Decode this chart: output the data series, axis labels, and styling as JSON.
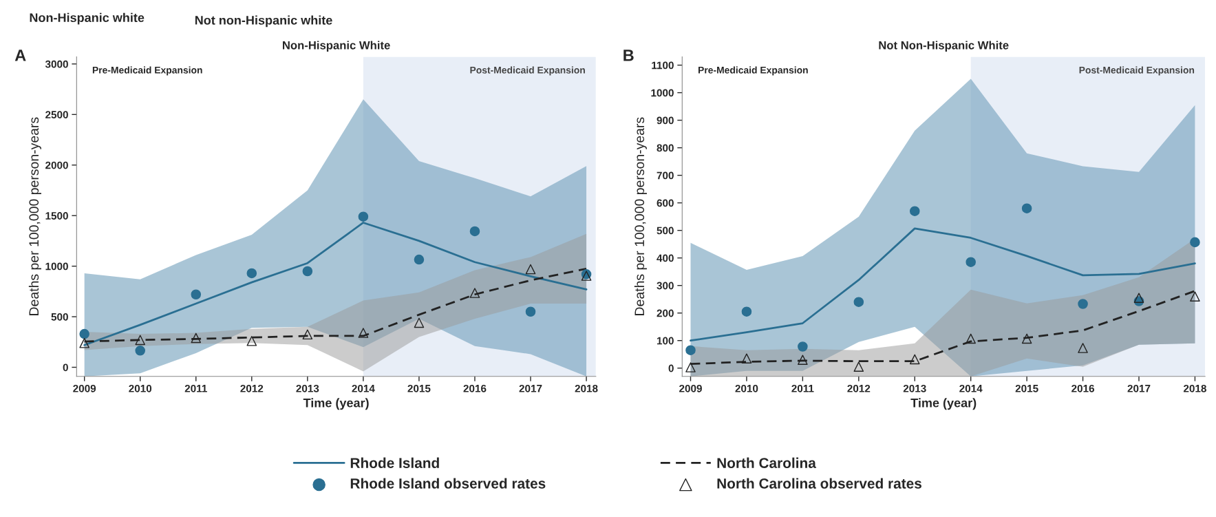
{
  "chart_data": [
    {
      "type": "line",
      "title": "Non-Hispanic White",
      "xlabel": "Time (year)",
      "ylabel": "Deaths per 100,000 person-years",
      "annotations": [
        "Non-Hispanic white",
        "Not non-Hispanic white",
        "A",
        "Pre-Medicaid Expansion"
      ],
      "x": [
        2009,
        2010,
        2011,
        2012,
        2013,
        2014,
        2015,
        2016,
        2017,
        2018
      ],
      "xlim": [
        2008.86,
        2018.17
      ],
      "xticks": [
        2009,
        2010,
        2011,
        2012,
        2013,
        2014,
        2015,
        2016,
        2017,
        2018
      ],
      "ylim": [
        -90,
        3070
      ],
      "yticks": [
        0,
        500,
        1000,
        1500,
        2000,
        2500,
        3000
      ],
      "bands": [
        {
          "axis": "x",
          "from": 2014,
          "to": 2018.17,
          "label": "Post-Medicaid Expansion",
          "color": "#e8eef7"
        }
      ],
      "legend": "bottom",
      "grid": false,
      "series": [
        {
          "name": "Rhode Island",
          "color": "#2a6f92",
          "line_style": "solid",
          "values": [
            220,
            420,
            630,
            840,
            1030,
            1430,
            1250,
            1040,
            900,
            770
          ],
          "lower": [
            -90,
            -60,
            140,
            390,
            400,
            200,
            480,
            210,
            130,
            -90
          ],
          "upper": [
            930,
            870,
            1110,
            1310,
            1750,
            2650,
            2040,
            1870,
            1690,
            1990
          ]
        },
        {
          "name": "North Carolina",
          "color": "#222222",
          "line_style": "dashed",
          "values": [
            255,
            270,
            280,
            295,
            310,
            310,
            520,
            720,
            860,
            975
          ],
          "lower": [
            170,
            210,
            230,
            240,
            220,
            -40,
            300,
            480,
            630,
            630
          ],
          "upper": [
            350,
            330,
            340,
            380,
            400,
            660,
            740,
            960,
            1090,
            1320
          ]
        },
        {
          "name": "Rhode Island observed rates",
          "type": "scatter",
          "marker": "circle",
          "color": "#2a6f92",
          "values": [
            330,
            165,
            720,
            930,
            950,
            1490,
            1065,
            1345,
            550,
            920
          ]
        },
        {
          "name": "North Carolina observed rates",
          "type": "scatter",
          "marker": "triangle",
          "color": "#222222",
          "values": [
            240,
            270,
            290,
            260,
            325,
            340,
            440,
            735,
            970,
            905
          ]
        }
      ]
    },
    {
      "type": "line",
      "title": "Not Non-Hispanic White",
      "xlabel": "Time (year)",
      "ylabel": "Deaths per 100,000 person-years",
      "annotations": [
        "B",
        "Pre-Medicaid Expansion"
      ],
      "x": [
        2009,
        2010,
        2011,
        2012,
        2013,
        2014,
        2015,
        2016,
        2017,
        2018
      ],
      "xlim": [
        2008.85,
        2018.18
      ],
      "xticks": [
        2009,
        2010,
        2011,
        2012,
        2013,
        2014,
        2015,
        2016,
        2017,
        2018
      ],
      "ylim": [
        -30,
        1130
      ],
      "yticks": [
        0,
        100,
        200,
        300,
        400,
        500,
        600,
        700,
        800,
        900,
        1000,
        1100
      ],
      "bands": [
        {
          "axis": "x",
          "from": 2014,
          "to": 2018.18,
          "label": "Post-Medicaid Expansion",
          "color": "#e8eef7"
        }
      ],
      "grid": false,
      "series": [
        {
          "color": "#2a6f92",
          "line_style": "solid",
          "values": [
            100,
            130,
            163,
            320,
            507,
            473,
            407,
            337,
            342,
            380
          ],
          "lower": [
            -30,
            -10,
            -10,
            95,
            150,
            -30,
            -10,
            10,
            85,
            90
          ],
          "upper": [
            455,
            357,
            407,
            550,
            862,
            1050,
            780,
            733,
            712,
            955
          ]
        },
        {
          "color": "#222222",
          "line_style": "dashed",
          "values": [
            15,
            23,
            27,
            25,
            25,
            97,
            110,
            137,
            207,
            280
          ],
          "lower": [
            -30,
            -30,
            -30,
            -30,
            -30,
            -30,
            35,
            5,
            85,
            90
          ],
          "upper": [
            80,
            65,
            70,
            65,
            90,
            285,
            235,
            265,
            330,
            470
          ]
        },
        {
          "type": "scatter",
          "marker": "circle",
          "color": "#2a6f92",
          "values": [
            65,
            205,
            78,
            240,
            570,
            385,
            580,
            233,
            243,
            457
          ]
        },
        {
          "type": "scatter",
          "marker": "triangle",
          "color": "#222222",
          "values": [
            3,
            35,
            30,
            5,
            32,
            107,
            107,
            73,
            255,
            260
          ]
        }
      ]
    }
  ]
}
